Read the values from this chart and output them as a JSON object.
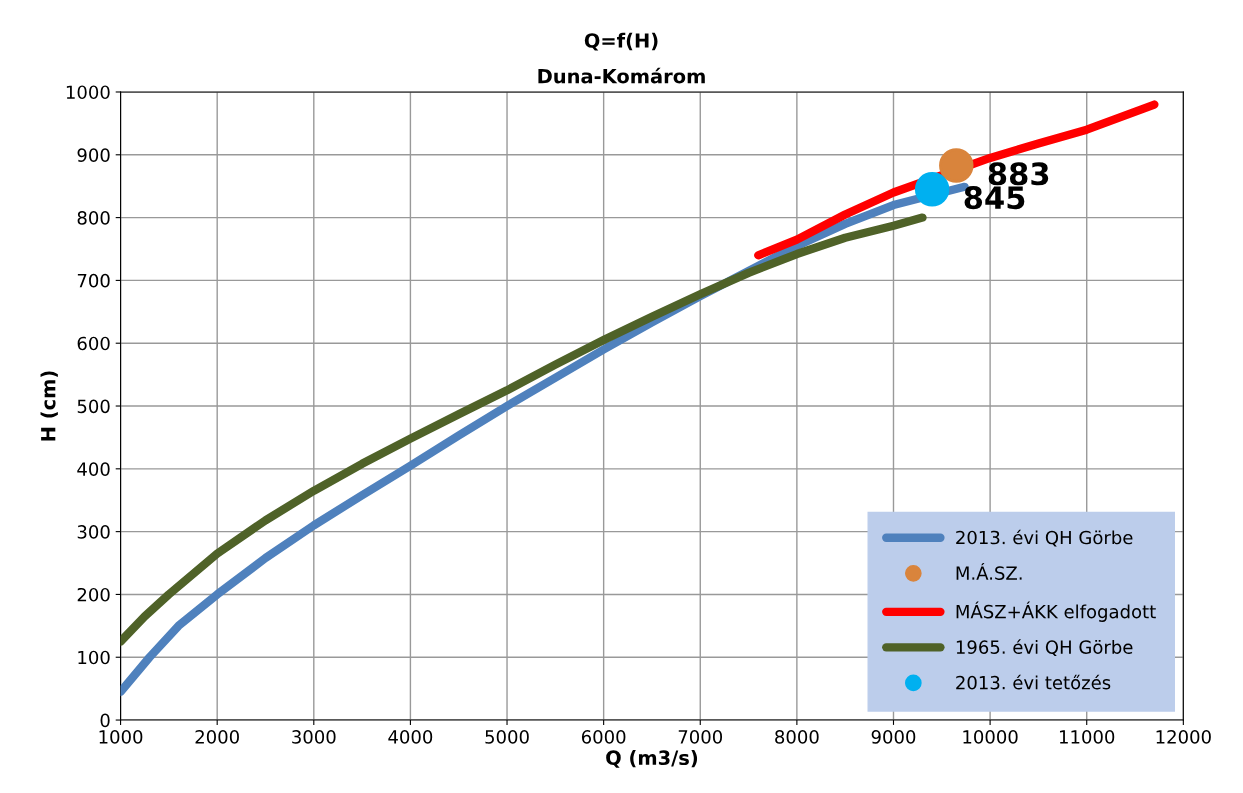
{
  "chart_data": {
    "type": "line",
    "title": "Q=f(H)",
    "subtitle": "Duna-Komárom",
    "xlabel": "Q (m3/s)",
    "ylabel": "H (cm)",
    "xlim": [
      1000,
      12000
    ],
    "xticks": [
      1000,
      2000,
      3000,
      4000,
      5000,
      6000,
      7000,
      8000,
      9000,
      10000,
      11000,
      12000
    ],
    "ylim": [
      0,
      1000
    ],
    "yticks": [
      0,
      100,
      200,
      300,
      400,
      500,
      600,
      700,
      800,
      900,
      1000
    ],
    "grid": true,
    "legend": "bottom right",
    "series": [
      {
        "name": "2013. évi QH Görbe",
        "color": "#4f81bd",
        "x": [
          1000,
          1300,
          1600,
          2000,
          2500,
          3000,
          3500,
          4000,
          4500,
          5000,
          5500,
          6000,
          6500,
          7000,
          7500,
          8000,
          8500,
          9000,
          9736
        ],
        "values": [
          45,
          100,
          150,
          200,
          258,
          310,
          358,
          405,
          453,
          500,
          545,
          590,
          633,
          675,
          715,
          755,
          790,
          820,
          849
        ]
      },
      {
        "name": "M.Á.SZ.",
        "type": "scatter",
        "marker": "circle",
        "color": "#d9843c",
        "x": [
          9650
        ],
        "values": [
          883
        ]
      },
      {
        "name": "MÁSZ+ÁKK elfogadott",
        "color": "#ff0000",
        "x": [
          7600,
          8000,
          8500,
          9000,
          10000,
          10500,
          11000,
          11700
        ],
        "values": [
          740,
          765,
          805,
          840,
          895,
          918,
          940,
          980
        ]
      },
      {
        "name": "1965. évi QH Görbe",
        "color": "#4f6228",
        "x": [
          1000,
          1250,
          1500,
          2000,
          2500,
          3000,
          3500,
          4000,
          4500,
          5000,
          5500,
          6000,
          6500,
          7000,
          7500,
          8000,
          8500,
          9000,
          9300
        ],
        "values": [
          125,
          165,
          200,
          265,
          318,
          365,
          408,
          448,
          487,
          525,
          566,
          605,
          642,
          678,
          712,
          742,
          768,
          787,
          800
        ]
      },
      {
        "name": "2013. évi tetőzés",
        "type": "scatter",
        "marker": "circle",
        "color": "#00b0f0",
        "x": [
          9400
        ],
        "values": [
          845
        ]
      }
    ],
    "annotations": [
      {
        "text": "883",
        "x": 9650,
        "y": 883
      },
      {
        "text": "845",
        "x": 9400,
        "y": 845
      }
    ]
  }
}
